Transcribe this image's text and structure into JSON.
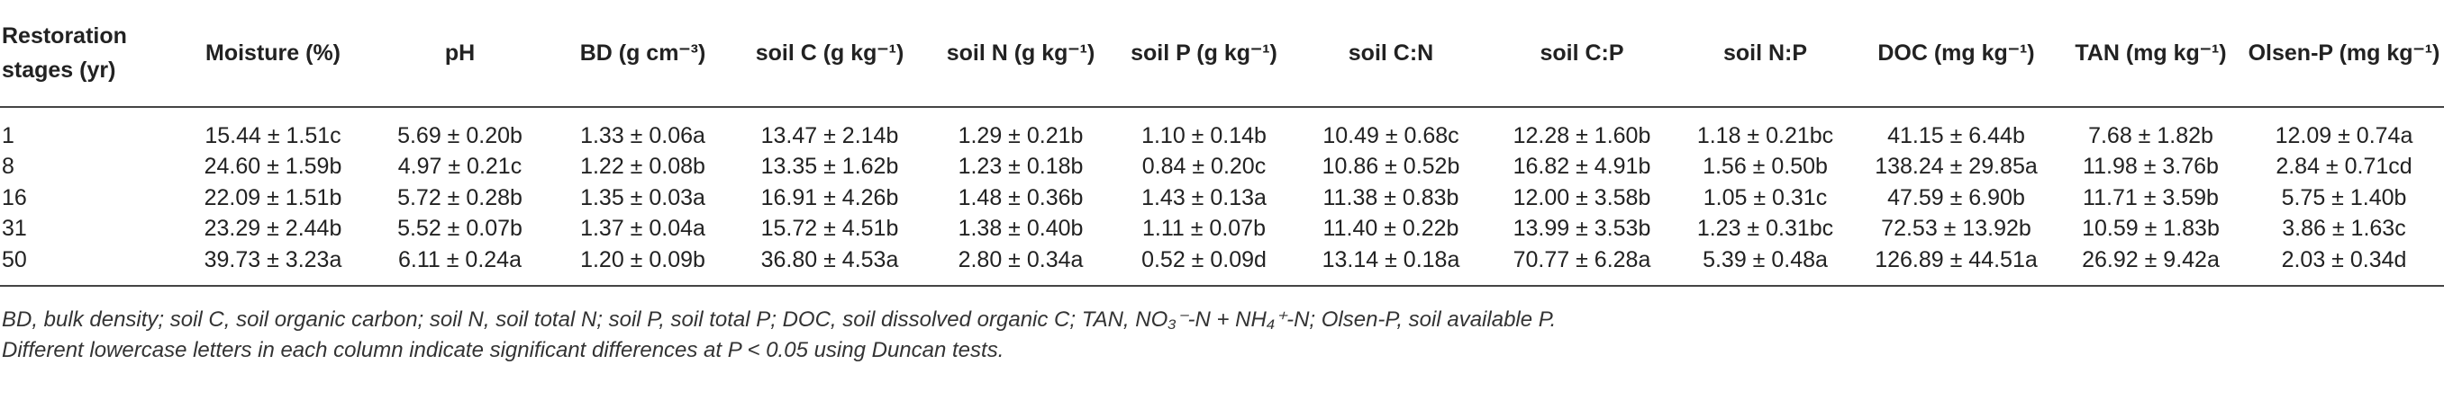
{
  "table": {
    "header": [
      "Restoration stages (yr)",
      "Moisture (%)",
      "pH",
      "BD (g cm⁻³)",
      "soil C (g kg⁻¹)",
      "soil N (g kg⁻¹)",
      "soil P (g kg⁻¹)",
      "soil C:N",
      "soil C:P",
      "soil N:P",
      "DOC (mg kg⁻¹)",
      "TAN (mg kg⁻¹)",
      "Olsen-P (mg kg⁻¹)"
    ],
    "rows": [
      [
        "1",
        "15.44 ± 1.51c",
        "5.69 ± 0.20b",
        "1.33 ± 0.06a",
        "13.47 ± 2.14b",
        "1.29 ± 0.21b",
        "1.10 ± 0.14b",
        "10.49 ± 0.68c",
        "12.28 ± 1.60b",
        "1.18 ± 0.21bc",
        "41.15 ± 6.44b",
        "7.68 ± 1.82b",
        "12.09 ± 0.74a"
      ],
      [
        "8",
        "24.60 ± 1.59b",
        "4.97 ± 0.21c",
        "1.22 ± 0.08b",
        "13.35 ± 1.62b",
        "1.23 ± 0.18b",
        "0.84 ± 0.20c",
        "10.86 ± 0.52b",
        "16.82 ± 4.91b",
        "1.56 ± 0.50b",
        "138.24 ± 29.85a",
        "11.98 ± 3.76b",
        "2.84 ± 0.71cd"
      ],
      [
        "16",
        "22.09 ± 1.51b",
        "5.72 ± 0.28b",
        "1.35 ± 0.03a",
        "16.91 ± 4.26b",
        "1.48 ± 0.36b",
        "1.43 ± 0.13a",
        "11.38 ± 0.83b",
        "12.00 ± 3.58b",
        "1.05 ± 0.31c",
        "47.59 ± 6.90b",
        "11.71 ± 3.59b",
        "5.75 ± 1.40b"
      ],
      [
        "31",
        "23.29 ± 2.44b",
        "5.52 ± 0.07b",
        "1.37 ± 0.04a",
        "15.72 ± 4.51b",
        "1.38 ± 0.40b",
        "1.11 ± 0.07b",
        "11.40 ± 0.22b",
        "13.99 ± 3.53b",
        "1.23 ± 0.31bc",
        "72.53 ± 13.92b",
        "10.59 ± 1.83b",
        "3.86 ± 1.63c"
      ],
      [
        "50",
        "39.73 ± 3.23a",
        "6.11 ± 0.24a",
        "1.20 ± 0.09b",
        "36.80 ± 4.53a",
        "2.80 ± 0.34a",
        "0.52 ± 0.09d",
        "13.14 ± 0.18a",
        "70.77 ± 6.28a",
        "5.39 ± 0.48a",
        "126.89 ± 44.51a",
        "26.92 ± 9.42a",
        "2.03 ± 0.34d"
      ]
    ]
  },
  "footnotes": [
    "BD, bulk density; soil C, soil organic carbon; soil N, soil total N; soil P, soil total P; DOC, soil dissolved organic C; TAN, NO₃⁻-N + NH₄⁺-N; Olsen-P, soil available P.",
    "Different lowercase letters in each column indicate significant differences at P < 0.05 using Duncan tests."
  ]
}
